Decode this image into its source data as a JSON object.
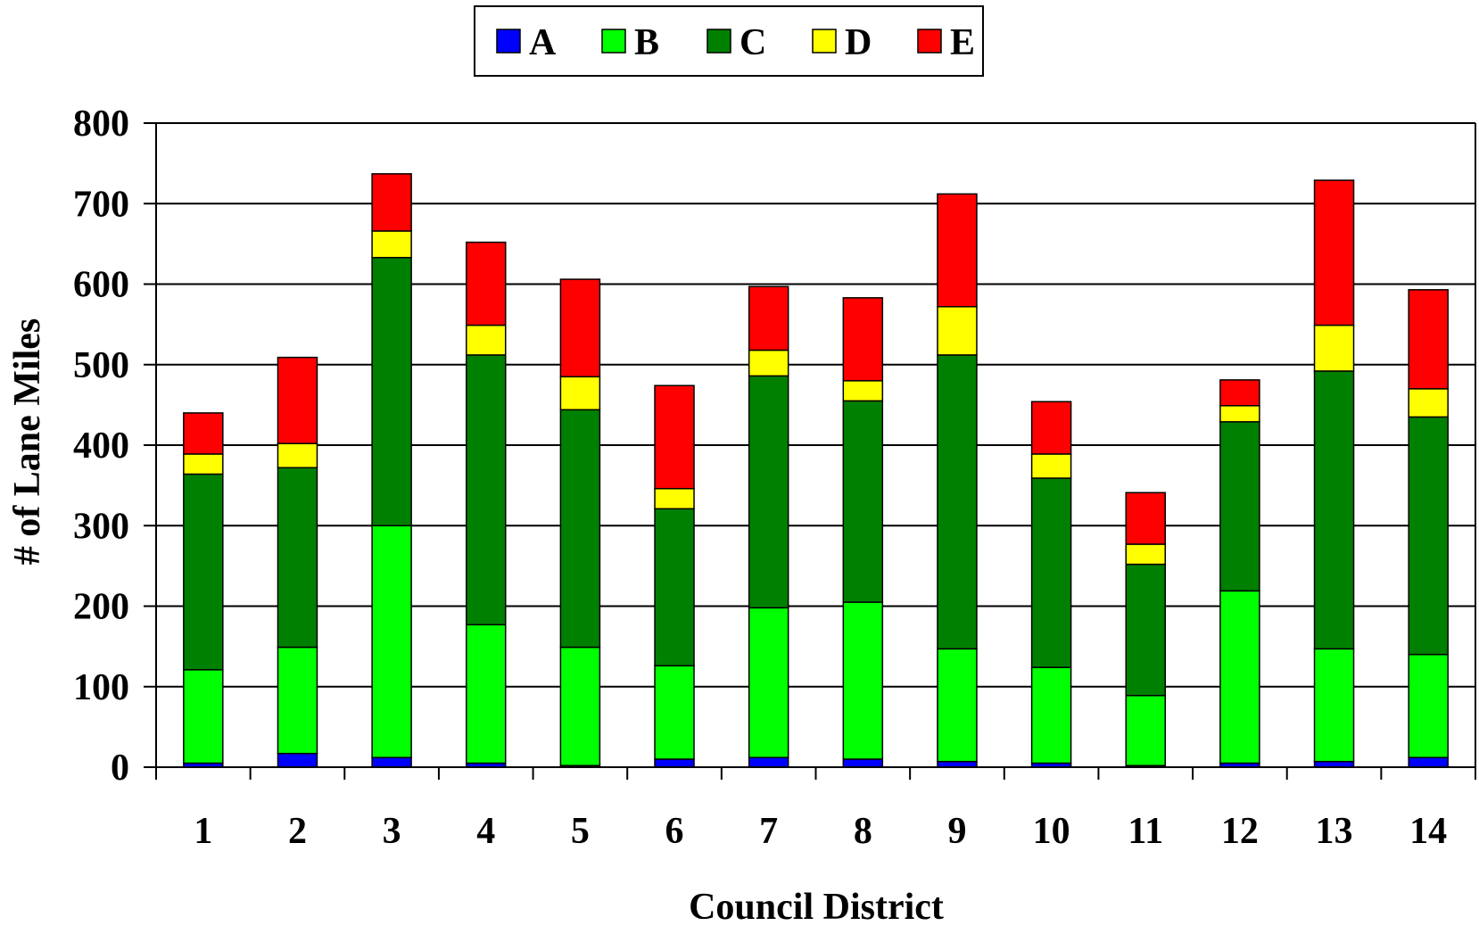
{
  "chart_data": {
    "type": "bar",
    "stacked": true,
    "title": "",
    "xlabel": "Council District",
    "ylabel": "# of Lane Miles",
    "ylim": [
      0,
      800
    ],
    "yticks": [
      0,
      100,
      200,
      300,
      400,
      500,
      600,
      700,
      800
    ],
    "grid": true,
    "legend_position": "top",
    "categories": [
      "1",
      "2",
      "3",
      "4",
      "5",
      "6",
      "7",
      "8",
      "9",
      "10",
      "11",
      "12",
      "13",
      "14"
    ],
    "series": [
      {
        "name": "A",
        "color": "#0000ff",
        "values": [
          5,
          17,
          12,
          5,
          2,
          10,
          12,
          10,
          7,
          5,
          2,
          5,
          7,
          12
        ]
      },
      {
        "name": "B",
        "color": "#00ff00",
        "values": [
          116,
          132,
          288,
          172,
          147,
          116,
          186,
          195,
          140,
          119,
          87,
          214,
          140,
          128
        ]
      },
      {
        "name": "C",
        "color": "#008000",
        "values": [
          243,
          223,
          333,
          335,
          295,
          195,
          288,
          250,
          365,
          235,
          163,
          210,
          345,
          295
        ]
      },
      {
        "name": "D",
        "color": "#ffff00",
        "values": [
          25,
          30,
          33,
          37,
          41,
          25,
          32,
          25,
          60,
          30,
          25,
          20,
          57,
          35
        ]
      },
      {
        "name": "E",
        "color": "#ff0000",
        "values": [
          51,
          107,
          71,
          103,
          121,
          128,
          79,
          103,
          140,
          65,
          64,
          32,
          180,
          123
        ]
      }
    ]
  }
}
